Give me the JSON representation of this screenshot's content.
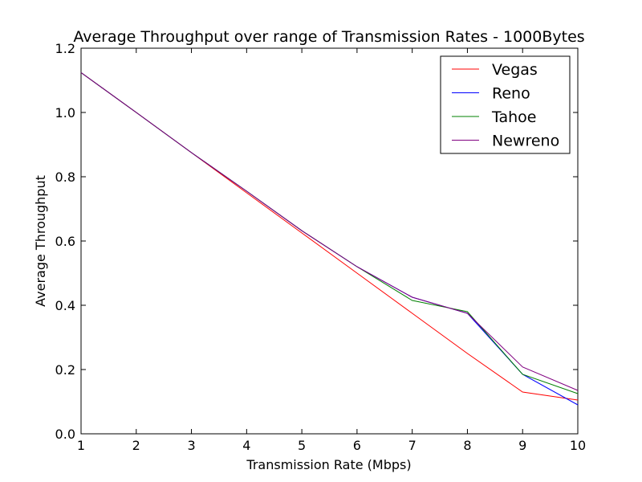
{
  "chart_data": {
    "type": "line",
    "title": "Average Throughput over range of Transmission Rates - 1000Bytes",
    "xlabel": "Transmission Rate (Mbps)",
    "ylabel": "Average Throughput",
    "xlim": [
      1,
      10
    ],
    "ylim": [
      0.0,
      1.2
    ],
    "x_ticks": [
      "1",
      "2",
      "3",
      "4",
      "5",
      "6",
      "7",
      "8",
      "9",
      "10"
    ],
    "y_ticks": [
      "0.0",
      "0.2",
      "0.4",
      "0.6",
      "0.8",
      "1.0",
      "1.2"
    ],
    "grid": false,
    "legend_position": "top-right",
    "x": [
      1,
      2,
      3,
      4,
      5,
      6,
      7,
      8,
      9,
      10
    ],
    "series": [
      {
        "name": "Vegas",
        "color": "#ff0000",
        "values": [
          1.124,
          1.0,
          0.875,
          0.75,
          0.625,
          0.5,
          0.375,
          0.25,
          0.13,
          0.105
        ]
      },
      {
        "name": "Reno",
        "color": "#0000ff",
        "values": [
          1.124,
          1.0,
          0.875,
          0.755,
          0.632,
          0.52,
          0.425,
          0.375,
          0.185,
          0.09
        ]
      },
      {
        "name": "Tahoe",
        "color": "#008000",
        "values": [
          1.124,
          1.0,
          0.875,
          0.755,
          0.632,
          0.52,
          0.415,
          0.38,
          0.185,
          0.125
        ]
      },
      {
        "name": "Newreno",
        "color": "#800080",
        "values": [
          1.124,
          1.0,
          0.875,
          0.755,
          0.632,
          0.52,
          0.425,
          0.375,
          0.208,
          0.135
        ]
      }
    ]
  }
}
